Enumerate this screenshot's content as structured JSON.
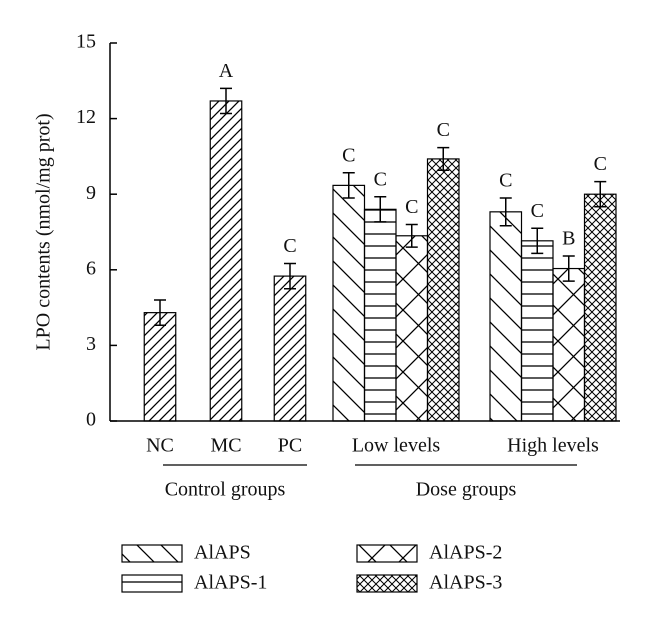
{
  "chart_data": {
    "type": "bar",
    "ylabel": "LPO contents (nmol/mg prot)",
    "categories": [
      "NC",
      "MC",
      "PC",
      "Low levels",
      "High levels"
    ],
    "group_labels": [
      "Control groups",
      "Dose groups"
    ],
    "ylim": [
      0,
      15
    ],
    "yticks": [
      0,
      3,
      6,
      9,
      12,
      15
    ],
    "series": [
      {
        "color": "#000000",
        "pattern": "forward-diagonal",
        "values": [
          4.3,
          12.7,
          5.75,
          null,
          null
        ],
        "errors": [
          0.5,
          0.5,
          0.5,
          null,
          null
        ],
        "letters": [
          null,
          "A",
          "C",
          null,
          null
        ]
      },
      {
        "name": "AlAPS",
        "color": "#000000",
        "pattern": "back-diagonal",
        "values": [
          null,
          null,
          null,
          9.35,
          8.3
        ],
        "errors": [
          null,
          null,
          null,
          0.5,
          0.55
        ],
        "letters": [
          null,
          null,
          null,
          "C",
          "C"
        ]
      },
      {
        "name": "AlAPS-1",
        "color": "#000000",
        "pattern": "horizontal",
        "values": [
          null,
          null,
          null,
          8.4,
          7.15
        ],
        "errors": [
          null,
          null,
          null,
          0.5,
          0.5
        ],
        "letters": [
          null,
          null,
          null,
          "C",
          "C"
        ]
      },
      {
        "name": "AlAPS-2",
        "color": "#000000",
        "pattern": "cross",
        "values": [
          null,
          null,
          null,
          7.35,
          6.05
        ],
        "errors": [
          null,
          null,
          null,
          0.45,
          0.5
        ],
        "letters": [
          null,
          null,
          null,
          "C",
          "B"
        ]
      },
      {
        "name": "AlAPS-3",
        "color": "#000000",
        "pattern": "dense-cross",
        "values": [
          null,
          null,
          null,
          10.4,
          9.0
        ],
        "errors": [
          null,
          null,
          null,
          0.45,
          0.5
        ],
        "letters": [
          null,
          null,
          null,
          "C",
          "C"
        ]
      }
    ]
  }
}
